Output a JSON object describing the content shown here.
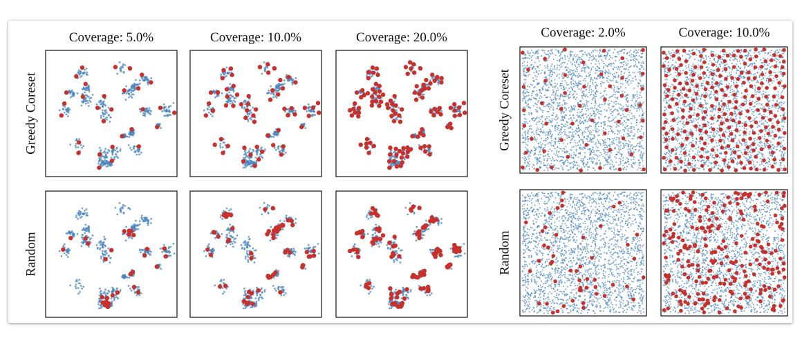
{
  "figure": {
    "left": {
      "columns": [
        "Coverage: 5.0%",
        "Coverage: 10.0%",
        "Coverage: 20.0%"
      ],
      "rows": [
        "Greedy Coreset",
        "Random"
      ]
    },
    "right": {
      "columns": [
        "Coverage: 2.0%",
        "Coverage: 10.0%"
      ],
      "rows": [
        "Greedy Coreset",
        "Random"
      ]
    }
  }
}
